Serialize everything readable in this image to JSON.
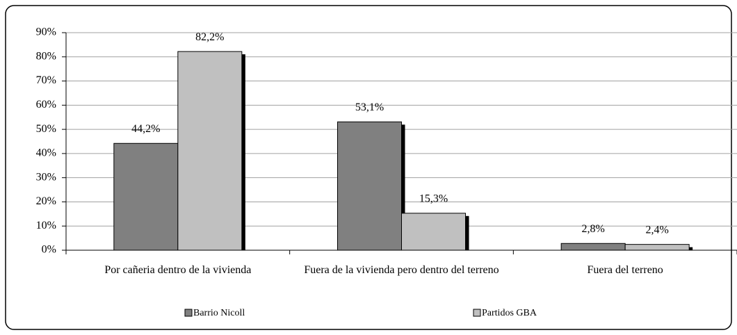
{
  "chart_data": {
    "type": "bar",
    "categories": [
      "Por cañeria dentro de la vivienda",
      "Fuera de la vivienda pero dentro del terreno",
      "Fuera del  terreno"
    ],
    "series": [
      {
        "name": "Barrio Nicoll",
        "color": "#808080",
        "values": [
          44.2,
          53.1,
          2.8
        ],
        "value_labels": [
          "44,2%",
          "53,1%",
          "2,8%"
        ]
      },
      {
        "name": "Partidos GBA",
        "color": "#c0c0c0",
        "values": [
          82.2,
          15.3,
          2.4
        ],
        "value_labels": [
          "82,2%",
          "15,3%",
          "2,4%"
        ]
      }
    ],
    "ylim": [
      0,
      90
    ],
    "yticks": [
      {
        "value": 0,
        "label": "0%"
      },
      {
        "value": 10,
        "label": "10%"
      },
      {
        "value": 20,
        "label": "20%"
      },
      {
        "value": 30,
        "label": "30%"
      },
      {
        "value": 40,
        "label": "40%"
      },
      {
        "value": 50,
        "label": "50%"
      },
      {
        "value": 60,
        "label": "60%"
      },
      {
        "value": 70,
        "label": "70%"
      },
      {
        "value": 80,
        "label": "80%"
      },
      {
        "value": 90,
        "label": "90%"
      }
    ],
    "grid": true,
    "legend": "bottom"
  }
}
